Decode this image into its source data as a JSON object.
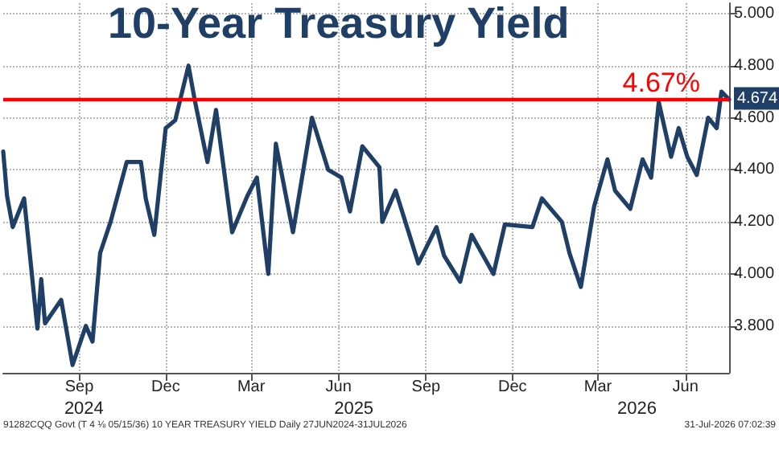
{
  "chart_data": {
    "type": "line",
    "title": "10-Year Treasury Yield",
    "x": [
      "2024-06-27",
      "2024-07-01",
      "2024-07-07",
      "2024-07-19",
      "2024-08-02",
      "2024-08-06",
      "2024-08-10",
      "2024-08-27",
      "2024-09-08",
      "2024-09-22",
      "2024-09-29",
      "2024-10-07",
      "2024-10-18",
      "2024-11-04",
      "2024-11-19",
      "2024-11-24",
      "2024-12-03",
      "2024-12-15",
      "2024-12-25",
      "2025-01-08",
      "2025-01-15",
      "2025-01-28",
      "2025-02-06",
      "2025-02-23",
      "2025-03-11",
      "2025-03-21",
      "2025-04-02",
      "2025-04-10",
      "2025-04-28",
      "2025-05-18",
      "2025-06-04",
      "2025-06-18",
      "2025-06-27",
      "2025-07-10",
      "2025-07-28",
      "2025-07-31",
      "2025-08-14",
      "2025-09-07",
      "2025-09-26",
      "2025-10-04",
      "2025-10-21",
      "2025-11-02",
      "2025-11-25",
      "2025-12-07",
      "2026-01-05",
      "2026-01-15",
      "2026-02-05",
      "2026-02-13",
      "2026-02-25",
      "2026-03-11",
      "2026-03-25",
      "2026-04-02",
      "2026-04-18",
      "2026-05-01",
      "2026-05-10",
      "2026-05-18",
      "2026-05-31",
      "2026-06-08",
      "2026-06-17",
      "2026-06-27",
      "2026-07-09",
      "2026-07-18",
      "2026-07-23",
      "2026-07-31"
    ],
    "series": [
      {
        "color": "#1f3f66",
        "values": [
          4.47,
          4.3,
          4.18,
          4.29,
          3.79,
          3.98,
          3.81,
          3.9,
          3.65,
          3.8,
          3.74,
          4.08,
          4.2,
          4.43,
          4.43,
          4.29,
          4.15,
          4.56,
          4.59,
          4.8,
          4.66,
          4.43,
          4.63,
          4.16,
          4.3,
          4.37,
          4.0,
          4.5,
          4.16,
          4.6,
          4.4,
          4.37,
          4.24,
          4.49,
          4.41,
          4.2,
          4.32,
          4.04,
          4.18,
          4.07,
          3.97,
          4.15,
          4.0,
          4.19,
          4.18,
          4.29,
          4.2,
          4.08,
          3.95,
          4.26,
          4.44,
          4.32,
          4.25,
          4.44,
          4.37,
          4.66,
          4.45,
          4.56,
          4.45,
          4.38,
          4.6,
          4.56,
          4.7,
          4.67
        ]
      }
    ],
    "xlim": [
      "2024-06-27",
      "2026-07-31"
    ],
    "xticks": [
      {
        "value": "2024-09-15",
        "label": "Sep"
      },
      {
        "value": "2024-12-15",
        "label": "Dec"
      },
      {
        "value": "2025-03-15",
        "label": "Mar"
      },
      {
        "value": "2025-06-15",
        "label": "Jun"
      },
      {
        "value": "2025-09-15",
        "label": "Sep"
      },
      {
        "value": "2025-12-15",
        "label": "Dec"
      },
      {
        "value": "2026-03-15",
        "label": "Mar"
      },
      {
        "value": "2026-06-15",
        "label": "Jun"
      }
    ],
    "x2lim": [
      "2024-06-27",
      "2026-07-31"
    ],
    "x2ticks": [
      {
        "value": "2024-09-20",
        "label": "2024"
      },
      {
        "value": "2025-07-01",
        "label": "2025"
      },
      {
        "value": "2026-04-25",
        "label": "2026"
      }
    ],
    "ylim": [
      3.62,
      5.04
    ],
    "yticks": [
      {
        "value": 3.8,
        "label": "3.800"
      },
      {
        "value": 4.0,
        "label": "4.000"
      },
      {
        "value": 4.2,
        "label": "4.200"
      },
      {
        "value": 4.4,
        "label": "4.400"
      },
      {
        "value": 4.6,
        "label": "4.600"
      },
      {
        "value": 4.8,
        "label": "4.800"
      },
      {
        "value": 5.0,
        "label": "5.000"
      }
    ],
    "ref_lines": [
      {
        "axis": "y",
        "value": 4.67,
        "label": "4.67%",
        "color": "#ff0000",
        "line_style": "solid"
      }
    ],
    "annotations": [
      {
        "text": "4.674",
        "x": "2026-07-31",
        "y": 4.674
      },
      "91282CQQ Govt (T 4 ⅛ 05/15/36) 10 YEAR TREASURY YIELD Daily 27JUN2024-31JUL2026",
      "31-Jul-2026 07:02:39"
    ],
    "grid": true,
    "marker": "none",
    "line_style": "solid"
  }
}
